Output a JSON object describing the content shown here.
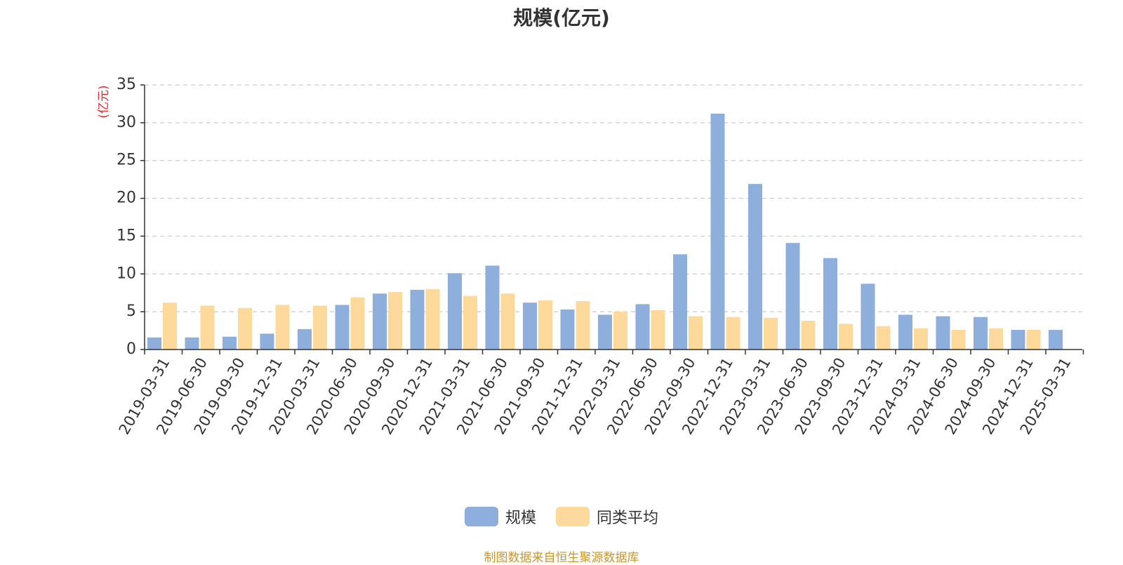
{
  "chart_data": {
    "type": "bar",
    "title": "规模(亿元)",
    "ylabel": "(亿元)",
    "xlabel": "",
    "ylim": [
      0,
      35
    ],
    "yticks": [
      0,
      5,
      10,
      15,
      20,
      25,
      30,
      35
    ],
    "grid": true,
    "legend_position": "bottom",
    "categories": [
      "2019-03-31",
      "2019-06-30",
      "2019-09-30",
      "2019-12-31",
      "2020-03-31",
      "2020-06-30",
      "2020-09-30",
      "2020-12-31",
      "2021-03-31",
      "2021-06-30",
      "2021-09-30",
      "2021-12-31",
      "2022-03-31",
      "2022-06-30",
      "2022-09-30",
      "2022-12-31",
      "2023-03-31",
      "2023-06-30",
      "2023-09-30",
      "2023-12-31",
      "2024-03-31",
      "2024-06-30",
      "2024-09-30",
      "2024-12-31",
      "2025-03-31"
    ],
    "series": [
      {
        "name": "规模",
        "color": "#8eaedc",
        "values": [
          1.6,
          1.6,
          1.7,
          2.1,
          2.7,
          5.9,
          7.4,
          7.9,
          10.1,
          11.1,
          6.2,
          5.3,
          4.6,
          6.0,
          12.6,
          31.2,
          21.9,
          14.1,
          12.1,
          8.7,
          4.6,
          4.4,
          4.3,
          2.6,
          2.6
        ]
      },
      {
        "name": "同类平均",
        "color": "#fdd99b",
        "values": [
          6.2,
          5.8,
          5.5,
          5.9,
          5.8,
          6.9,
          7.6,
          8.0,
          7.1,
          7.4,
          6.5,
          6.4,
          5.0,
          5.2,
          4.4,
          4.3,
          4.2,
          3.8,
          3.4,
          3.1,
          2.8,
          2.6,
          2.8,
          2.6,
          null
        ]
      }
    ]
  },
  "source_note": "制图数据来自恒生聚源数据库"
}
